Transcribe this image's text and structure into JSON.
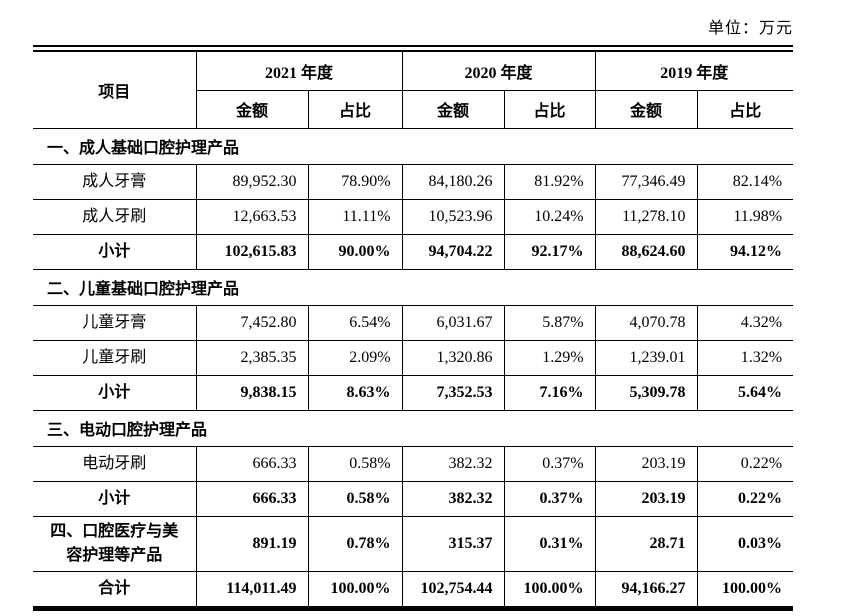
{
  "page": {
    "unit_label": "单位：万元"
  },
  "table": {
    "header": {
      "item": "项目",
      "year_groups": [
        "2021 年度",
        "2020 年度",
        "2019 年度"
      ],
      "sub_headers": [
        "金额",
        "占比"
      ]
    },
    "rows": [
      {
        "type": "section",
        "label": "一、成人基础口腔护理产品",
        "values": []
      },
      {
        "type": "data",
        "label": "成人牙膏",
        "values": [
          "89,952.30",
          "78.90%",
          "84,180.26",
          "81.92%",
          "77,346.49",
          "82.14%"
        ]
      },
      {
        "type": "data",
        "label": "成人牙刷",
        "values": [
          "12,663.53",
          "11.11%",
          "10,523.96",
          "10.24%",
          "11,278.10",
          "11.98%"
        ]
      },
      {
        "type": "subtotal",
        "label": "小计",
        "values": [
          "102,615.83",
          "90.00%",
          "94,704.22",
          "92.17%",
          "88,624.60",
          "94.12%"
        ]
      },
      {
        "type": "section",
        "label": "二、儿童基础口腔护理产品",
        "values": []
      },
      {
        "type": "data",
        "label": "儿童牙膏",
        "values": [
          "7,452.80",
          "6.54%",
          "6,031.67",
          "5.87%",
          "4,070.78",
          "4.32%"
        ]
      },
      {
        "type": "data",
        "label": "儿童牙刷",
        "values": [
          "2,385.35",
          "2.09%",
          "1,320.86",
          "1.29%",
          "1,239.01",
          "1.32%"
        ]
      },
      {
        "type": "subtotal",
        "label": "小计",
        "values": [
          "9,838.15",
          "8.63%",
          "7,352.53",
          "7.16%",
          "5,309.78",
          "5.64%"
        ]
      },
      {
        "type": "section",
        "label": "三、电动口腔护理产品",
        "values": []
      },
      {
        "type": "data",
        "label": "电动牙刷",
        "values": [
          "666.33",
          "0.58%",
          "382.32",
          "0.37%",
          "203.19",
          "0.22%"
        ]
      },
      {
        "type": "subtotal",
        "label": "小计",
        "values": [
          "666.33",
          "0.58%",
          "382.32",
          "0.37%",
          "203.19",
          "0.22%"
        ]
      },
      {
        "type": "category-total",
        "label": "四、口腔医疗与美容护理等产品",
        "values": [
          "891.19",
          "0.78%",
          "315.37",
          "0.31%",
          "28.71",
          "0.03%"
        ]
      },
      {
        "type": "total",
        "label": "合计",
        "values": [
          "114,011.49",
          "100.00%",
          "102,754.44",
          "100.00%",
          "94,166.27",
          "100.00%"
        ]
      }
    ]
  }
}
